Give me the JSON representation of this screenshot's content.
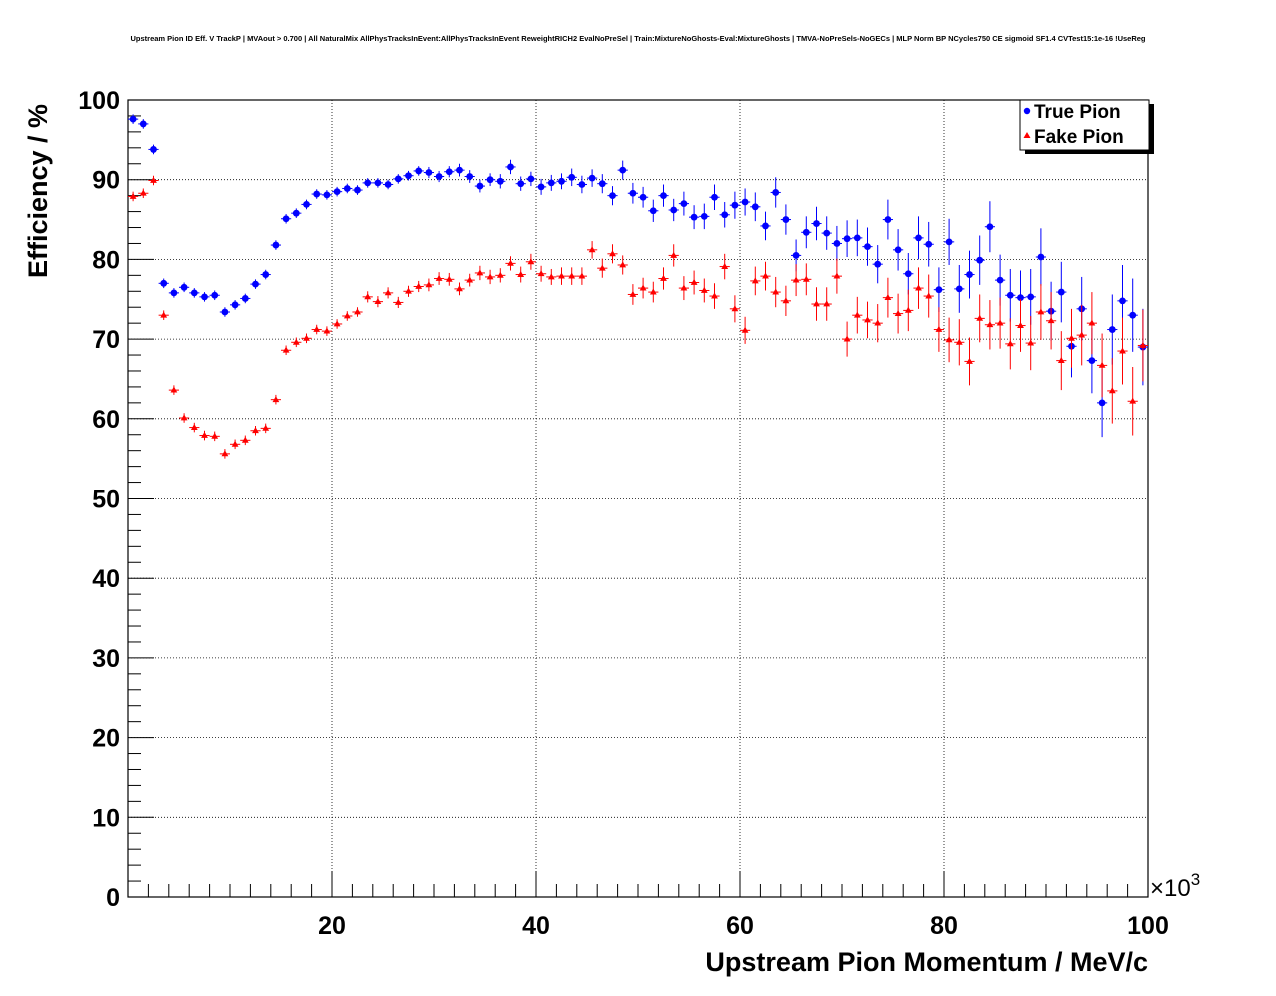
{
  "chart_data": {
    "type": "scatter",
    "title": "Upstream Pion ID Eff. V TrackP | MVAout > 0.700 | All NaturalMix AllPhysTracksInEvent:AllPhysTracksInEvent ReweightRICH2 EvalNoPreSel | Train:MixtureNoGhosts-Eval:MixtureGhosts | TMVA-NoPreSels-NoGECs | MLP Norm BP NCycles750 CE sigmoid SF1.4 CVTest15:1e-16 !UseReg",
    "xlabel": "Upstream Pion Momentum / MeV/c",
    "ylabel": "Efficiency / %",
    "x_multiplier": "×10",
    "x_multiplier_exp": "3",
    "xlim": [
      0,
      100000
    ],
    "ylim": [
      0,
      100
    ],
    "x_ticks": [
      "20",
      "40",
      "60",
      "80",
      "100"
    ],
    "y_ticks": [
      "0",
      "10",
      "20",
      "30",
      "40",
      "50",
      "60",
      "70",
      "80",
      "90",
      "100"
    ],
    "grid": true,
    "legend_position": "top-right",
    "x": [
      500,
      1500,
      2500,
      3500,
      4500,
      5500,
      6500,
      7500,
      8500,
      9500,
      10500,
      11500,
      12500,
      13500,
      14500,
      15500,
      16500,
      17500,
      18500,
      19500,
      20500,
      21500,
      22500,
      23500,
      24500,
      25500,
      26500,
      27500,
      28500,
      29500,
      30500,
      31500,
      32500,
      33500,
      34500,
      35500,
      36500,
      37500,
      38500,
      39500,
      40500,
      41500,
      42500,
      43500,
      44500,
      45500,
      46500,
      47500,
      48500,
      49500,
      50500,
      51500,
      52500,
      53500,
      54500,
      55500,
      56500,
      57500,
      58500,
      59500,
      60500,
      61500,
      62500,
      63500,
      64500,
      65500,
      66500,
      67500,
      68500,
      69500,
      70500,
      71500,
      72500,
      73500,
      74500,
      75500,
      76500,
      77500,
      78500,
      79500,
      80500,
      81500,
      82500,
      83500,
      84500,
      85500,
      86500,
      87500,
      88500,
      89500,
      90500,
      91500,
      92500,
      93500,
      94500,
      95500,
      96500,
      97500,
      98500,
      99500
    ],
    "series": [
      {
        "name": "True Pion",
        "color": "#0000ff",
        "marker": "circle",
        "values": [
          97.6,
          97.0,
          93.8,
          77.0,
          75.8,
          76.5,
          75.8,
          75.3,
          75.5,
          73.4,
          74.3,
          75.1,
          76.9,
          78.1,
          81.8,
          85.1,
          85.8,
          86.9,
          88.2,
          88.1,
          88.5,
          88.9,
          88.7,
          89.6,
          89.6,
          89.4,
          90.1,
          90.5,
          91.1,
          90.9,
          90.4,
          91.0,
          91.2,
          90.4,
          89.2,
          90.0,
          89.8,
          91.6,
          89.5,
          90.1,
          89.1,
          89.6,
          89.8,
          90.3,
          89.4,
          90.2,
          89.5,
          88.0,
          91.2,
          88.3,
          87.8,
          86.1,
          88.0,
          86.2,
          87.0,
          85.3,
          85.4,
          87.8,
          85.6,
          86.8,
          87.2,
          86.6,
          84.2,
          88.4,
          85.0,
          80.5,
          83.4,
          84.5,
          83.3,
          82.0,
          82.6,
          82.7,
          81.6,
          79.4,
          85.0,
          81.2,
          78.2,
          82.7,
          81.9,
          76.2,
          82.2,
          76.3,
          78.1,
          79.9,
          84.1,
          77.4,
          75.5,
          75.2,
          75.3,
          80.3,
          73.5,
          75.9,
          69.1,
          73.8,
          67.3,
          62.0,
          71.2,
          74.8,
          73.0,
          69.0
        ],
        "errors": [
          0.6,
          0.6,
          0.6,
          0.6,
          0.6,
          0.6,
          0.6,
          0.6,
          0.6,
          0.6,
          0.6,
          0.6,
          0.6,
          0.6,
          0.6,
          0.6,
          0.6,
          0.6,
          0.6,
          0.6,
          0.6,
          0.6,
          0.6,
          0.6,
          0.6,
          0.6,
          0.6,
          0.6,
          0.6,
          0.7,
          0.7,
          0.7,
          0.8,
          0.8,
          0.8,
          0.8,
          0.9,
          0.9,
          0.9,
          0.9,
          1.0,
          1.0,
          1.0,
          1.1,
          1.1,
          1.1,
          1.2,
          1.2,
          1.2,
          1.3,
          1.3,
          1.4,
          1.4,
          1.4,
          1.5,
          1.5,
          1.6,
          1.6,
          1.6,
          1.7,
          1.7,
          1.8,
          1.8,
          1.9,
          1.9,
          2.0,
          2.0,
          2.1,
          2.1,
          2.2,
          2.3,
          2.3,
          2.4,
          2.4,
          2.5,
          2.6,
          2.6,
          2.7,
          2.8,
          2.8,
          2.9,
          3.0,
          3.0,
          3.1,
          3.2,
          3.2,
          3.3,
          3.4,
          3.5,
          3.6,
          3.7,
          3.8,
          3.9,
          4.0,
          4.1,
          4.3,
          4.4,
          4.5,
          4.6,
          4.8
        ]
      },
      {
        "name": "Fake Pion",
        "color": "#ff0000",
        "marker": "triangle",
        "values": [
          87.9,
          88.3,
          89.9,
          73.0,
          63.6,
          60.1,
          58.9,
          57.9,
          57.8,
          55.6,
          56.8,
          57.3,
          58.5,
          58.8,
          62.4,
          68.6,
          69.6,
          70.1,
          71.2,
          71.0,
          71.9,
          72.9,
          73.4,
          75.3,
          74.7,
          75.8,
          74.6,
          76.0,
          76.6,
          76.8,
          77.6,
          77.5,
          76.3,
          77.4,
          78.3,
          77.8,
          78.0,
          79.5,
          78.1,
          79.7,
          78.2,
          77.8,
          77.9,
          77.9,
          77.9,
          81.2,
          78.9,
          80.7,
          79.3,
          75.6,
          76.4,
          75.9,
          77.6,
          80.5,
          76.4,
          77.1,
          76.1,
          75.4,
          79.1,
          73.8,
          71.1,
          77.3,
          77.9,
          75.9,
          74.8,
          77.4,
          77.5,
          74.4,
          74.4,
          77.9,
          70.0,
          73.0,
          72.4,
          72.0,
          75.2,
          73.2,
          73.6,
          76.4,
          75.4,
          71.2,
          69.9,
          69.6,
          67.2,
          72.6,
          71.8,
          72.0,
          69.4,
          71.7,
          69.5,
          73.4,
          72.3,
          67.3,
          70.1,
          70.5,
          72.0,
          66.7,
          63.5,
          68.5,
          62.2,
          69.2
        ],
        "errors": [
          0.6,
          0.6,
          0.6,
          0.6,
          0.6,
          0.6,
          0.6,
          0.6,
          0.6,
          0.6,
          0.6,
          0.6,
          0.6,
          0.6,
          0.6,
          0.6,
          0.6,
          0.6,
          0.6,
          0.6,
          0.6,
          0.6,
          0.6,
          0.7,
          0.7,
          0.7,
          0.7,
          0.7,
          0.7,
          0.8,
          0.8,
          0.8,
          0.8,
          0.8,
          0.9,
          0.9,
          0.9,
          0.9,
          1.0,
          1.0,
          1.0,
          1.0,
          1.1,
          1.1,
          1.1,
          1.1,
          1.2,
          1.2,
          1.2,
          1.3,
          1.3,
          1.3,
          1.4,
          1.4,
          1.5,
          1.5,
          1.5,
          1.6,
          1.6,
          1.7,
          1.7,
          1.8,
          1.8,
          1.9,
          1.9,
          2.0,
          2.0,
          2.1,
          2.1,
          2.2,
          2.2,
          2.3,
          2.3,
          2.4,
          2.5,
          2.5,
          2.6,
          2.6,
          2.7,
          2.8,
          2.8,
          2.9,
          3.0,
          3.0,
          3.1,
          3.2,
          3.2,
          3.3,
          3.4,
          3.5,
          3.6,
          3.7,
          3.7,
          3.8,
          3.9,
          4.0,
          4.1,
          4.2,
          4.3,
          4.5
        ]
      }
    ]
  }
}
